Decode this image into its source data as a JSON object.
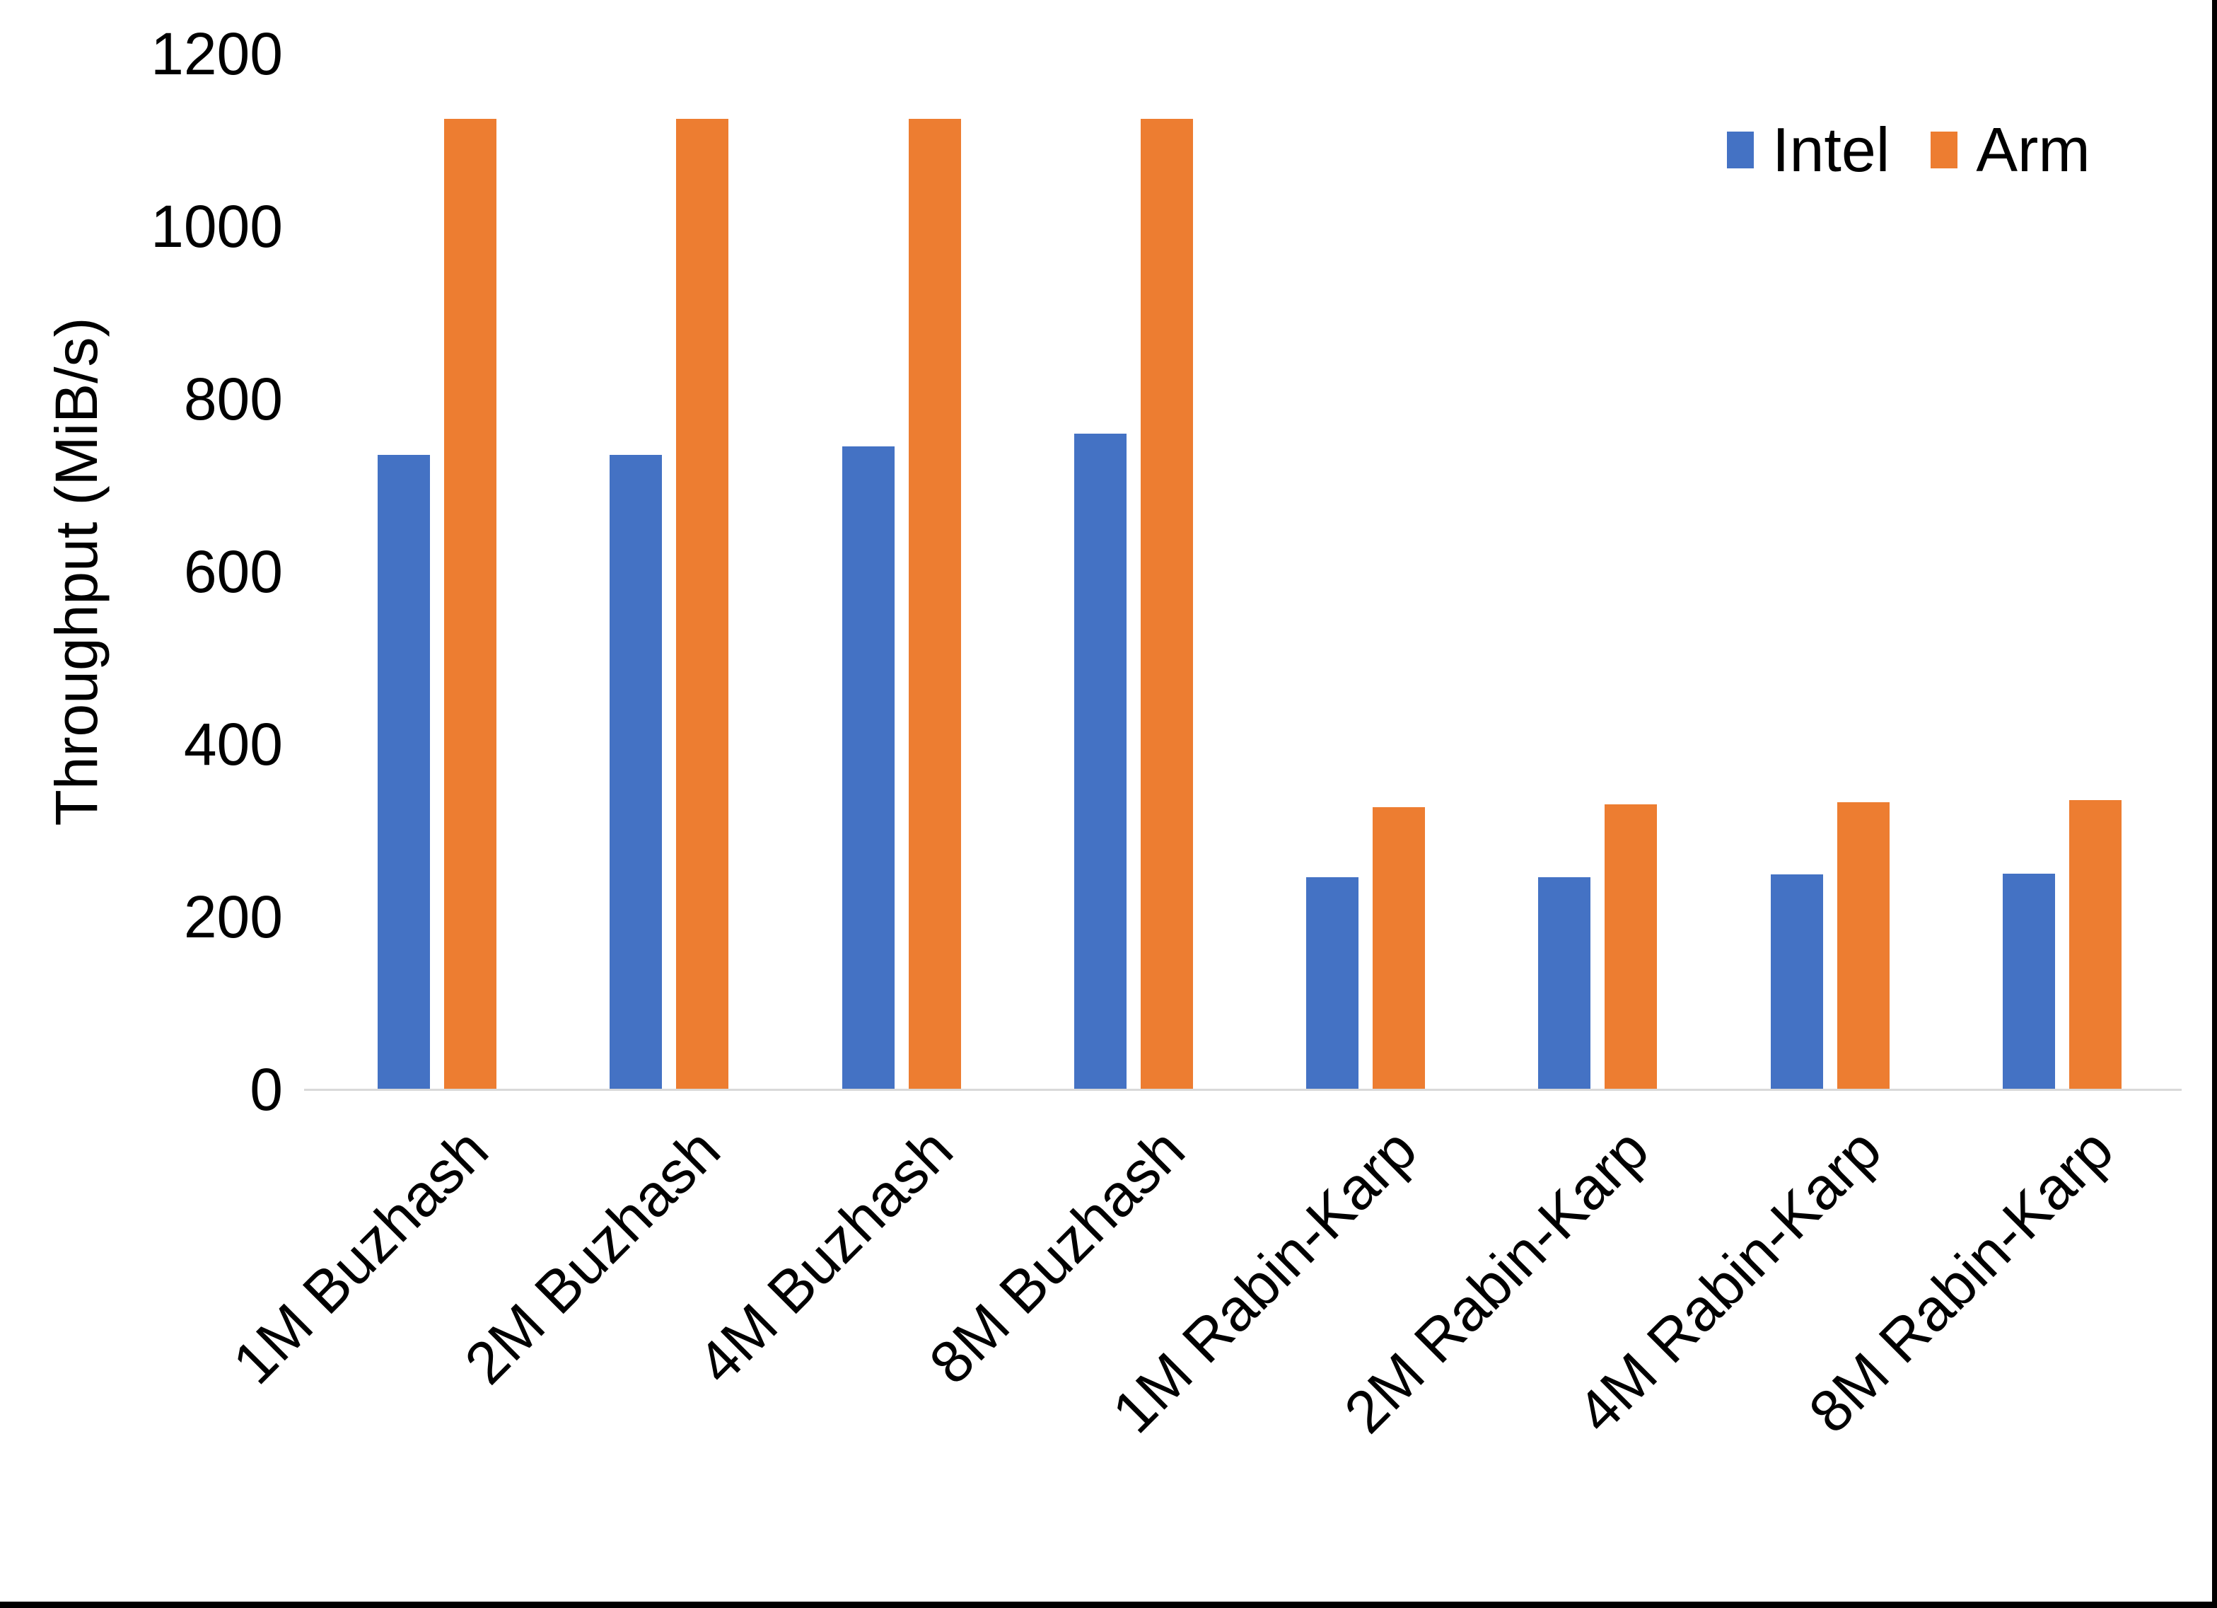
{
  "frame": {
    "edge_color": "#000000"
  },
  "axis_colors": {
    "baseline": "#D9D9D9",
    "text": "#000000"
  },
  "legend": {
    "position": "top-right"
  },
  "chart_data": {
    "type": "bar",
    "title": "",
    "xlabel": "",
    "ylabel": "Throughput (MiB/s)",
    "ylim": [
      0,
      1200
    ],
    "yticks": [
      0,
      200,
      400,
      600,
      800,
      1000,
      1200
    ],
    "grid": false,
    "legend_position": "top-right",
    "categories": [
      "1M Buzhash",
      "2M Buzhash",
      "4M Buzhash",
      "8M Buzhash",
      "1M Rabin-Karp",
      "2M Rabin-Karp",
      "4M Rabin-Karp",
      "8M Rabin-Karp"
    ],
    "series": [
      {
        "name": "Intel",
        "color": "#4472C4",
        "values": [
          735,
          735,
          745,
          760,
          246,
          246,
          249,
          250
        ]
      },
      {
        "name": "Arm",
        "color": "#ED7D31",
        "values": [
          1125,
          1125,
          1125,
          1125,
          327,
          330,
          333,
          335
        ]
      }
    ]
  }
}
